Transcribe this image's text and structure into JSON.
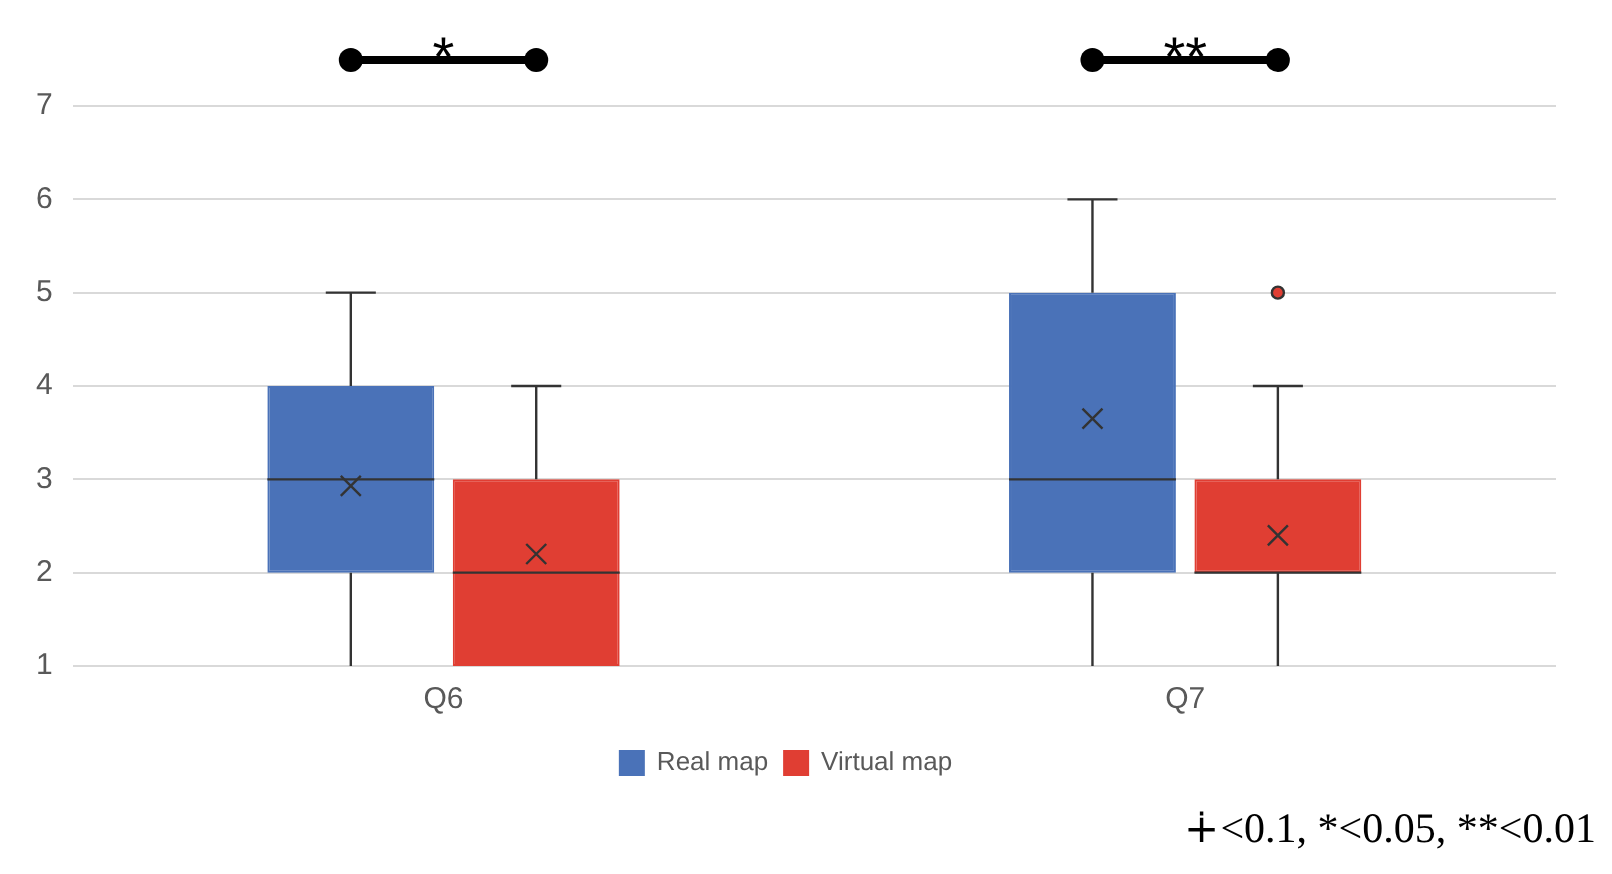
{
  "chart_data": {
    "type": "box",
    "categories": [
      "Q6",
      "Q7"
    ],
    "series": [
      {
        "name": "Real map",
        "color": "#4a72b8",
        "boxes": [
          {
            "low": 1,
            "q1": 2,
            "median": 3,
            "q3": 4,
            "high": 5,
            "mean": 2.93
          },
          {
            "low": 1,
            "q1": 2,
            "median": 3,
            "q3": 5,
            "high": 6,
            "mean": 3.65
          }
        ]
      },
      {
        "name": "Virtual map",
        "color": "#e03e33",
        "boxes": [
          {
            "low": 1,
            "q1": 1,
            "median": 2,
            "q3": 3,
            "high": 4,
            "mean": 2.2
          },
          {
            "low": 1,
            "q1": 2,
            "median": 2,
            "q3": 3,
            "high": 4,
            "mean": 2.4,
            "outliers": [
              5
            ]
          }
        ]
      }
    ],
    "ylim": [
      1,
      7
    ],
    "yticks": [
      1,
      2,
      3,
      4,
      5,
      6,
      7
    ],
    "grid": "y",
    "legend": "bottom",
    "annotations": [
      "*",
      "**",
      "∔<0.1, *<0.05, **<0.01"
    ]
  }
}
